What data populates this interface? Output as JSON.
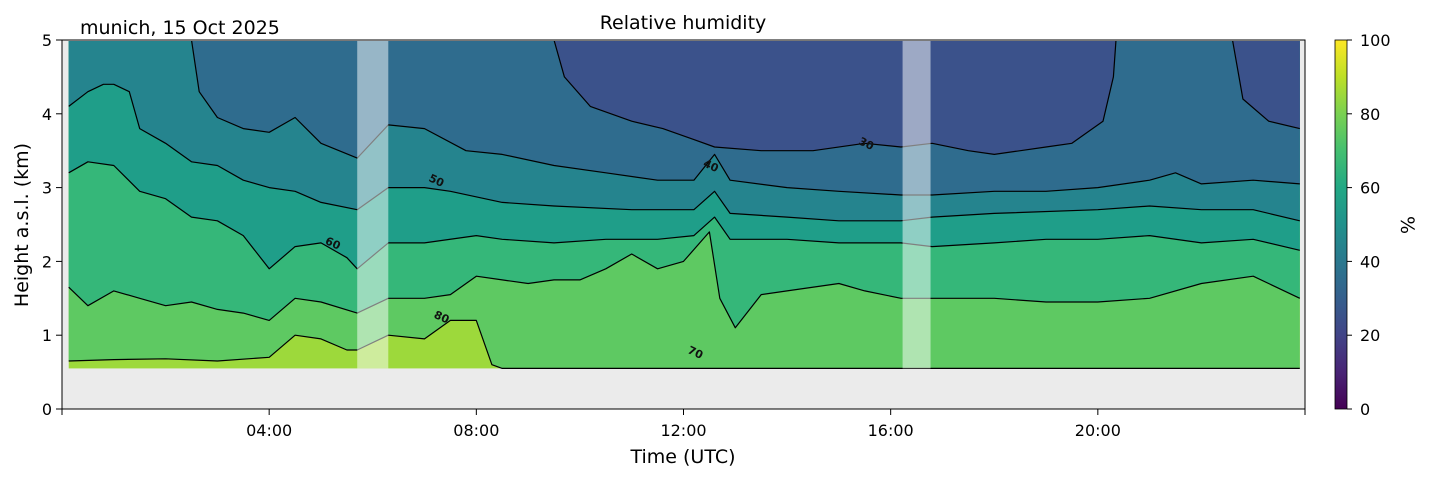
{
  "chart_data": {
    "type": "heatmap",
    "title": "Relative humidity",
    "subtitle": "munich, 15 Oct 2025",
    "xlabel": "Time (UTC)",
    "ylabel": "Height a.s.l. (km)",
    "xlim": [
      0,
      24
    ],
    "ylim": [
      0,
      5
    ],
    "data_height_range": [
      0.55,
      5
    ],
    "data_time_range": [
      0.13,
      23.9
    ],
    "x_ticks": [
      {
        "v": 4,
        "label": "04:00"
      },
      {
        "v": 8,
        "label": "08:00"
      },
      {
        "v": 12,
        "label": "12:00"
      },
      {
        "v": 16,
        "label": "16:00"
      },
      {
        "v": 20,
        "label": "20:00"
      }
    ],
    "y_ticks": [
      {
        "v": 0,
        "label": "0"
      },
      {
        "v": 1,
        "label": "1"
      },
      {
        "v": 2,
        "label": "2"
      },
      {
        "v": 3,
        "label": "3"
      },
      {
        "v": 4,
        "label": "4"
      },
      {
        "v": 5,
        "label": "5"
      }
    ],
    "colorbar": {
      "label": "%",
      "range": [
        0,
        100
      ],
      "ticks": [
        {
          "v": 0,
          "label": "0"
        },
        {
          "v": 20,
          "label": "20"
        },
        {
          "v": 40,
          "label": "40"
        },
        {
          "v": 60,
          "label": "60"
        },
        {
          "v": 80,
          "label": "80"
        },
        {
          "v": 100,
          "label": "100"
        }
      ],
      "colors": [
        "#440154",
        "#482475",
        "#414487",
        "#355f8d",
        "#2a788e",
        "#21918c",
        "#22a884",
        "#44bf70",
        "#7ad151",
        "#bddf26",
        "#fde725"
      ]
    },
    "no_data_gaps": [
      [
        5.7,
        6.3
      ],
      [
        16.23,
        16.77
      ]
    ],
    "band_colors": {
      "85": "#9dd93b",
      "75": "#5ec962",
      "65": "#35b779",
      "55": "#1f9e89",
      "45": "#25848e",
      "35": "#2f6c8e",
      "25": "#3b528b"
    },
    "contours": [
      {
        "level": 80,
        "label": "80",
        "label_at": [
          7.3,
          1.2
        ],
        "points": [
          [
            0.13,
            0.65
          ],
          [
            1,
            0.67
          ],
          [
            2,
            0.68
          ],
          [
            3,
            0.65
          ],
          [
            4,
            0.7
          ],
          [
            4.5,
            1.0
          ],
          [
            5,
            0.95
          ],
          [
            5.5,
            0.8
          ],
          [
            5.7,
            0.8
          ],
          [
            6.3,
            1.0
          ],
          [
            7,
            0.95
          ],
          [
            7.5,
            1.2
          ],
          [
            8,
            1.2
          ],
          [
            8.3,
            0.6
          ],
          [
            8.5,
            0.55
          ],
          [
            23.9,
            0.55
          ]
        ]
      },
      {
        "level": 70,
        "label": "70",
        "label_at": [
          12.2,
          0.72
        ],
        "points": [
          [
            0.13,
            1.65
          ],
          [
            0.5,
            1.4
          ],
          [
            1,
            1.6
          ],
          [
            1.5,
            1.5
          ],
          [
            2,
            1.4
          ],
          [
            2.5,
            1.45
          ],
          [
            3,
            1.35
          ],
          [
            3.5,
            1.3
          ],
          [
            4,
            1.2
          ],
          [
            4.5,
            1.5
          ],
          [
            5,
            1.45
          ],
          [
            5.7,
            1.3
          ],
          [
            6.3,
            1.5
          ],
          [
            7,
            1.5
          ],
          [
            7.5,
            1.55
          ],
          [
            8,
            1.8
          ],
          [
            8.5,
            1.75
          ],
          [
            9,
            1.7
          ],
          [
            9.5,
            1.75
          ],
          [
            10,
            1.75
          ],
          [
            10.5,
            1.9
          ],
          [
            11,
            2.1
          ],
          [
            11.5,
            1.9
          ],
          [
            12,
            2.0
          ],
          [
            12.5,
            2.4
          ],
          [
            12.7,
            1.5
          ],
          [
            13,
            1.1
          ],
          [
            13.5,
            1.55
          ],
          [
            14,
            1.6
          ],
          [
            15,
            1.7
          ],
          [
            15.5,
            1.6
          ],
          [
            16.2,
            1.5
          ],
          [
            16.8,
            1.5
          ],
          [
            18,
            1.5
          ],
          [
            19,
            1.45
          ],
          [
            20,
            1.45
          ],
          [
            21,
            1.5
          ],
          [
            22,
            1.7
          ],
          [
            23,
            1.8
          ],
          [
            23.9,
            1.5
          ]
        ]
      },
      {
        "level": 60,
        "label": "60",
        "label_at": [
          5.2,
          2.2
        ],
        "points": [
          [
            0.13,
            3.2
          ],
          [
            0.5,
            3.35
          ],
          [
            1,
            3.3
          ],
          [
            1.5,
            2.95
          ],
          [
            2,
            2.85
          ],
          [
            2.5,
            2.6
          ],
          [
            3,
            2.55
          ],
          [
            3.5,
            2.35
          ],
          [
            4,
            1.9
          ],
          [
            4.5,
            2.2
          ],
          [
            5,
            2.25
          ],
          [
            5.5,
            2.05
          ],
          [
            5.7,
            1.9
          ],
          [
            6.3,
            2.25
          ],
          [
            7,
            2.25
          ],
          [
            8,
            2.35
          ],
          [
            8.5,
            2.3
          ],
          [
            9.5,
            2.25
          ],
          [
            10.5,
            2.3
          ],
          [
            11.5,
            2.3
          ],
          [
            12.2,
            2.35
          ],
          [
            12.6,
            2.6
          ],
          [
            12.9,
            2.3
          ],
          [
            14,
            2.3
          ],
          [
            15,
            2.25
          ],
          [
            16.2,
            2.25
          ],
          [
            16.8,
            2.2
          ],
          [
            18,
            2.25
          ],
          [
            19,
            2.3
          ],
          [
            20,
            2.3
          ],
          [
            21,
            2.35
          ],
          [
            22,
            2.25
          ],
          [
            23,
            2.3
          ],
          [
            23.9,
            2.15
          ]
        ]
      },
      {
        "level": 50,
        "label": "50",
        "label_at": [
          7.2,
          3.05
        ],
        "points": [
          [
            0.13,
            4.1
          ],
          [
            0.5,
            4.3
          ],
          [
            0.8,
            4.4
          ],
          [
            1,
            4.4
          ],
          [
            1.3,
            4.3
          ],
          [
            1.5,
            3.8
          ],
          [
            2,
            3.6
          ],
          [
            2.5,
            3.35
          ],
          [
            3,
            3.3
          ],
          [
            3.5,
            3.1
          ],
          [
            4,
            3.0
          ],
          [
            4.5,
            2.95
          ],
          [
            5,
            2.8
          ],
          [
            5.7,
            2.7
          ],
          [
            6.3,
            3.0
          ],
          [
            7,
            3.0
          ],
          [
            7.5,
            2.95
          ],
          [
            8.5,
            2.8
          ],
          [
            9.5,
            2.75
          ],
          [
            11,
            2.7
          ],
          [
            12.2,
            2.7
          ],
          [
            12.6,
            2.95
          ],
          [
            12.9,
            2.65
          ],
          [
            14,
            2.6
          ],
          [
            15,
            2.55
          ],
          [
            16.2,
            2.55
          ],
          [
            16.8,
            2.6
          ],
          [
            18,
            2.65
          ],
          [
            20,
            2.7
          ],
          [
            21,
            2.75
          ],
          [
            22,
            2.7
          ],
          [
            23,
            2.7
          ],
          [
            23.9,
            2.55
          ]
        ]
      },
      {
        "level": 40,
        "label": "40",
        "label_at": [
          12.5,
          3.25
        ],
        "points": [
          [
            0.13,
            5
          ],
          [
            2.5,
            5
          ],
          [
            2.65,
            4.3
          ],
          [
            3,
            3.95
          ],
          [
            3.5,
            3.8
          ],
          [
            4,
            3.75
          ],
          [
            4.5,
            3.95
          ],
          [
            5,
            3.6
          ],
          [
            5.7,
            3.4
          ],
          [
            6.3,
            3.85
          ],
          [
            7,
            3.8
          ],
          [
            7.8,
            3.5
          ],
          [
            8.5,
            3.45
          ],
          [
            9.5,
            3.3
          ],
          [
            10.5,
            3.2
          ],
          [
            11.5,
            3.1
          ],
          [
            12.2,
            3.1
          ],
          [
            12.6,
            3.45
          ],
          [
            12.9,
            3.1
          ],
          [
            14,
            3.0
          ],
          [
            15,
            2.95
          ],
          [
            16.2,
            2.9
          ],
          [
            16.8,
            2.9
          ],
          [
            18,
            2.95
          ],
          [
            19,
            2.95
          ],
          [
            20,
            3.0
          ],
          [
            21,
            3.1
          ],
          [
            21.5,
            3.2
          ],
          [
            22,
            3.05
          ],
          [
            23,
            3.1
          ],
          [
            23.9,
            3.05
          ]
        ]
      },
      {
        "level": 30,
        "label": "30",
        "label_at": [
          15.5,
          3.55
        ],
        "points": [
          [
            0.13,
            5
          ],
          [
            9.5,
            5
          ],
          [
            9.7,
            4.5
          ],
          [
            10.2,
            4.1
          ],
          [
            11,
            3.9
          ],
          [
            11.6,
            3.8
          ],
          [
            12.2,
            3.65
          ],
          [
            12.6,
            3.55
          ],
          [
            13.5,
            3.5
          ],
          [
            14.5,
            3.5
          ],
          [
            15.5,
            3.6
          ],
          [
            16.2,
            3.55
          ],
          [
            16.8,
            3.6
          ],
          [
            17.5,
            3.5
          ],
          [
            18,
            3.45
          ],
          [
            19,
            3.55
          ],
          [
            19.5,
            3.6
          ],
          [
            20.1,
            3.9
          ],
          [
            20.3,
            4.5
          ],
          [
            20.35,
            5
          ],
          [
            22.6,
            5
          ],
          [
            22.8,
            4.2
          ],
          [
            23.3,
            3.9
          ],
          [
            23.9,
            3.8
          ]
        ]
      }
    ]
  }
}
